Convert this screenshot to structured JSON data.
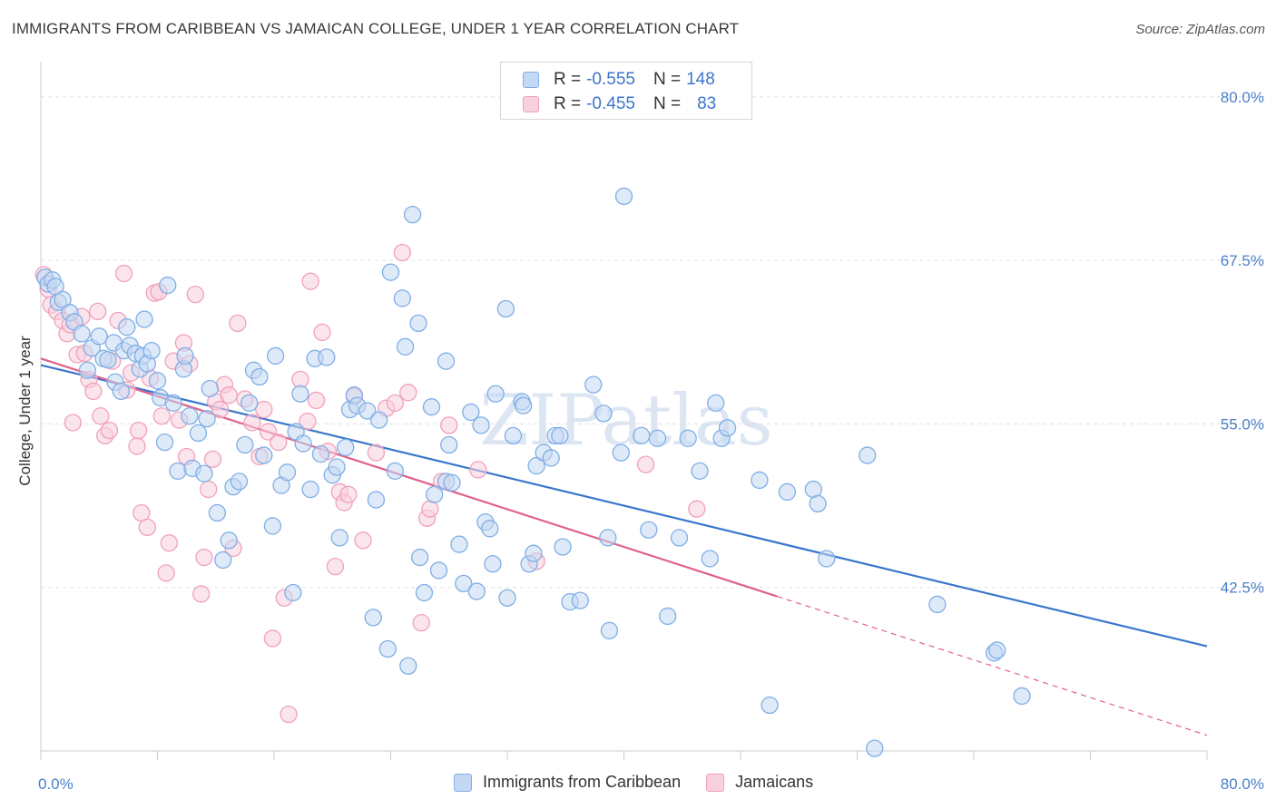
{
  "header": {
    "title": "IMMIGRANTS FROM CARIBBEAN VS JAMAICAN COLLEGE, UNDER 1 YEAR CORRELATION CHART",
    "source": "Source: ZipAtlas.com"
  },
  "legend": {
    "r_label": "R =",
    "n_label": "N =",
    "rows": [
      {
        "r": "-0.555",
        "n": "148"
      },
      {
        "r": "-0.455",
        "n": "83"
      }
    ]
  },
  "watermark": "ZIPatlas",
  "colors": {
    "blue_fill": "#c4d8f3",
    "blue_stroke": "#7faee6",
    "blue_line": "#3a77cc",
    "pink_fill": "#f8d0de",
    "pink_stroke": "#f1a0bb",
    "pink_line": "#e0608c",
    "grid": "#e0e0e0",
    "tick_text": "#4a7fc9"
  },
  "chart_data": {
    "type": "scatter",
    "title": "IMMIGRANTS FROM CARIBBEAN VS JAMAICAN COLLEGE, UNDER 1 YEAR CORRELATION CHART",
    "xlabel": "",
    "ylabel": "College, Under 1 year",
    "xlim": [
      0,
      80
    ],
    "ylim": [
      30,
      82
    ],
    "x_ticks": [
      "0.0%",
      "80.0%"
    ],
    "y_ticks": [
      {
        "value": 42.5,
        "label": "42.5%"
      },
      {
        "value": 55.0,
        "label": "55.0%"
      },
      {
        "value": 67.5,
        "label": "67.5%"
      },
      {
        "value": 80.0,
        "label": "80.0%"
      }
    ],
    "grid": "horizontal dashed",
    "legend_position": "top-center",
    "series": [
      {
        "name": "Immigrants from Caribbean",
        "color": "#7faee6",
        "trend": {
          "x0": 0,
          "y0": 59.5,
          "x1": 80,
          "y1": 38.0,
          "dashed_from": null
        },
        "points": [
          [
            0.3,
            66.2
          ],
          [
            0.5,
            65.7
          ],
          [
            0.8,
            66.0
          ],
          [
            1.0,
            65.5
          ],
          [
            1.2,
            64.3
          ],
          [
            1.5,
            64.5
          ],
          [
            2.0,
            63.5
          ],
          [
            2.3,
            62.8
          ],
          [
            2.8,
            61.9
          ],
          [
            3.2,
            59.1
          ],
          [
            3.5,
            60.8
          ],
          [
            4.0,
            61.7
          ],
          [
            4.3,
            60.0
          ],
          [
            4.6,
            59.9
          ],
          [
            5.0,
            61.2
          ],
          [
            5.1,
            58.2
          ],
          [
            5.5,
            57.5
          ],
          [
            5.7,
            60.6
          ],
          [
            5.9,
            62.4
          ],
          [
            6.1,
            61.0
          ],
          [
            6.5,
            60.4
          ],
          [
            6.8,
            59.2
          ],
          [
            7.0,
            60.2
          ],
          [
            7.1,
            63.0
          ],
          [
            7.3,
            59.6
          ],
          [
            7.6,
            60.6
          ],
          [
            8.0,
            58.3
          ],
          [
            8.2,
            57.0
          ],
          [
            8.5,
            53.6
          ],
          [
            8.7,
            65.6
          ],
          [
            9.1,
            56.6
          ],
          [
            9.4,
            51.4
          ],
          [
            9.8,
            59.2
          ],
          [
            9.9,
            60.2
          ],
          [
            10.2,
            55.6
          ],
          [
            10.4,
            51.6
          ],
          [
            10.8,
            54.3
          ],
          [
            11.2,
            51.2
          ],
          [
            11.4,
            55.4
          ],
          [
            11.6,
            57.7
          ],
          [
            12.1,
            48.2
          ],
          [
            12.5,
            44.6
          ],
          [
            12.9,
            46.1
          ],
          [
            13.2,
            50.2
          ],
          [
            13.6,
            50.6
          ],
          [
            14.0,
            53.4
          ],
          [
            14.3,
            56.6
          ],
          [
            14.6,
            59.1
          ],
          [
            15.0,
            58.6
          ],
          [
            15.3,
            52.6
          ],
          [
            15.9,
            47.2
          ],
          [
            16.1,
            60.2
          ],
          [
            16.5,
            50.3
          ],
          [
            16.9,
            51.3
          ],
          [
            17.3,
            42.1
          ],
          [
            17.5,
            54.4
          ],
          [
            17.8,
            57.3
          ],
          [
            18.0,
            53.5
          ],
          [
            18.5,
            50.0
          ],
          [
            18.8,
            60.0
          ],
          [
            19.2,
            52.7
          ],
          [
            19.6,
            60.1
          ],
          [
            20.0,
            51.1
          ],
          [
            20.3,
            51.7
          ],
          [
            20.5,
            46.3
          ],
          [
            20.9,
            53.2
          ],
          [
            21.2,
            56.1
          ],
          [
            21.5,
            57.2
          ],
          [
            21.7,
            56.4
          ],
          [
            22.4,
            56.0
          ],
          [
            22.8,
            40.2
          ],
          [
            23.0,
            49.2
          ],
          [
            23.2,
            55.3
          ],
          [
            23.8,
            37.8
          ],
          [
            24.0,
            66.6
          ],
          [
            24.3,
            51.4
          ],
          [
            24.8,
            64.6
          ],
          [
            25.0,
            60.9
          ],
          [
            25.2,
            36.5
          ],
          [
            25.5,
            71.0
          ],
          [
            25.9,
            62.7
          ],
          [
            26.0,
            44.8
          ],
          [
            26.3,
            42.1
          ],
          [
            26.8,
            56.3
          ],
          [
            27.0,
            49.6
          ],
          [
            27.3,
            43.8
          ],
          [
            27.8,
            59.8
          ],
          [
            27.8,
            50.6
          ],
          [
            28.0,
            53.4
          ],
          [
            28.2,
            50.5
          ],
          [
            28.7,
            45.8
          ],
          [
            29.0,
            42.8
          ],
          [
            29.5,
            55.9
          ],
          [
            29.9,
            42.2
          ],
          [
            30.2,
            54.9
          ],
          [
            30.5,
            47.5
          ],
          [
            30.8,
            47.0
          ],
          [
            31.0,
            44.3
          ],
          [
            31.2,
            57.3
          ],
          [
            31.9,
            63.8
          ],
          [
            32.0,
            41.7
          ],
          [
            32.4,
            54.1
          ],
          [
            33.0,
            56.7
          ],
          [
            33.1,
            56.4
          ],
          [
            33.5,
            44.3
          ],
          [
            33.8,
            45.1
          ],
          [
            34.0,
            51.8
          ],
          [
            34.5,
            52.8
          ],
          [
            35.0,
            52.4
          ],
          [
            35.3,
            54.1
          ],
          [
            35.6,
            54.1
          ],
          [
            35.8,
            45.6
          ],
          [
            36.3,
            41.4
          ],
          [
            37.0,
            41.5
          ],
          [
            37.9,
            58.0
          ],
          [
            38.6,
            55.8
          ],
          [
            38.9,
            46.3
          ],
          [
            39.0,
            39.2
          ],
          [
            39.8,
            52.8
          ],
          [
            40.0,
            72.4
          ],
          [
            41.2,
            54.1
          ],
          [
            41.7,
            46.9
          ],
          [
            42.3,
            53.9
          ],
          [
            43.0,
            40.3
          ],
          [
            43.8,
            46.3
          ],
          [
            44.4,
            53.9
          ],
          [
            45.2,
            51.4
          ],
          [
            45.9,
            44.7
          ],
          [
            46.3,
            56.6
          ],
          [
            46.7,
            53.9
          ],
          [
            47.1,
            54.7
          ],
          [
            49.3,
            50.7
          ],
          [
            50.0,
            33.5
          ],
          [
            51.2,
            49.8
          ],
          [
            53.0,
            50.0
          ],
          [
            53.3,
            48.9
          ],
          [
            53.9,
            44.7
          ],
          [
            56.7,
            52.6
          ],
          [
            61.5,
            41.2
          ],
          [
            65.4,
            37.5
          ],
          [
            65.6,
            37.7
          ],
          [
            67.3,
            34.2
          ],
          [
            57.2,
            30.2
          ]
        ]
      },
      {
        "name": "Jamaicans",
        "color": "#f1a0bb",
        "trend": {
          "x0": 0,
          "y0": 60.0,
          "x1": 80,
          "y1": 31.2,
          "dashed_from": 50.5
        },
        "points": [
          [
            0.2,
            66.4
          ],
          [
            0.5,
            65.3
          ],
          [
            0.7,
            64.1
          ],
          [
            1.1,
            63.6
          ],
          [
            1.5,
            62.9
          ],
          [
            1.8,
            61.9
          ],
          [
            2.0,
            62.6
          ],
          [
            2.2,
            55.1
          ],
          [
            2.5,
            60.3
          ],
          [
            2.8,
            63.2
          ],
          [
            3.0,
            60.4
          ],
          [
            3.3,
            58.4
          ],
          [
            3.6,
            57.5
          ],
          [
            3.9,
            63.6
          ],
          [
            4.1,
            55.6
          ],
          [
            4.4,
            54.1
          ],
          [
            4.7,
            54.5
          ],
          [
            4.9,
            59.8
          ],
          [
            5.3,
            62.9
          ],
          [
            5.7,
            66.5
          ],
          [
            5.9,
            57.6
          ],
          [
            6.2,
            58.9
          ],
          [
            6.6,
            53.3
          ],
          [
            6.7,
            54.5
          ],
          [
            6.9,
            48.2
          ],
          [
            7.3,
            47.1
          ],
          [
            7.5,
            58.5
          ],
          [
            7.8,
            65.0
          ],
          [
            8.1,
            65.1
          ],
          [
            8.3,
            55.6
          ],
          [
            8.6,
            43.6
          ],
          [
            8.8,
            45.9
          ],
          [
            9.1,
            59.8
          ],
          [
            9.5,
            55.3
          ],
          [
            9.8,
            61.2
          ],
          [
            10.0,
            52.5
          ],
          [
            10.2,
            59.6
          ],
          [
            10.6,
            64.9
          ],
          [
            11.0,
            42.0
          ],
          [
            11.2,
            44.8
          ],
          [
            11.5,
            50.0
          ],
          [
            11.8,
            52.3
          ],
          [
            12.0,
            56.7
          ],
          [
            12.3,
            56.1
          ],
          [
            12.6,
            58.0
          ],
          [
            12.9,
            57.2
          ],
          [
            13.2,
            45.5
          ],
          [
            13.5,
            62.7
          ],
          [
            14.0,
            56.9
          ],
          [
            14.5,
            55.1
          ],
          [
            15.0,
            52.5
          ],
          [
            15.3,
            56.1
          ],
          [
            15.6,
            54.4
          ],
          [
            15.9,
            38.6
          ],
          [
            16.3,
            53.6
          ],
          [
            16.7,
            41.7
          ],
          [
            17.0,
            32.8
          ],
          [
            17.8,
            58.4
          ],
          [
            18.3,
            55.2
          ],
          [
            18.5,
            65.9
          ],
          [
            18.9,
            56.8
          ],
          [
            19.3,
            62.0
          ],
          [
            19.7,
            52.9
          ],
          [
            20.2,
            44.1
          ],
          [
            20.5,
            49.8
          ],
          [
            20.8,
            49.0
          ],
          [
            21.1,
            49.6
          ],
          [
            21.5,
            57.1
          ],
          [
            22.1,
            46.1
          ],
          [
            23.0,
            52.8
          ],
          [
            23.7,
            56.2
          ],
          [
            24.3,
            56.6
          ],
          [
            24.8,
            68.1
          ],
          [
            25.2,
            57.4
          ],
          [
            26.1,
            39.8
          ],
          [
            26.5,
            47.8
          ],
          [
            26.7,
            48.5
          ],
          [
            27.5,
            50.6
          ],
          [
            28.0,
            54.9
          ],
          [
            30.0,
            51.5
          ],
          [
            34.0,
            44.5
          ],
          [
            41.5,
            51.9
          ],
          [
            45.0,
            48.5
          ]
        ]
      }
    ]
  },
  "bottom_legend": {
    "items": [
      {
        "label": "Immigrants from Caribbean"
      },
      {
        "label": "Jamaicans"
      }
    ]
  }
}
